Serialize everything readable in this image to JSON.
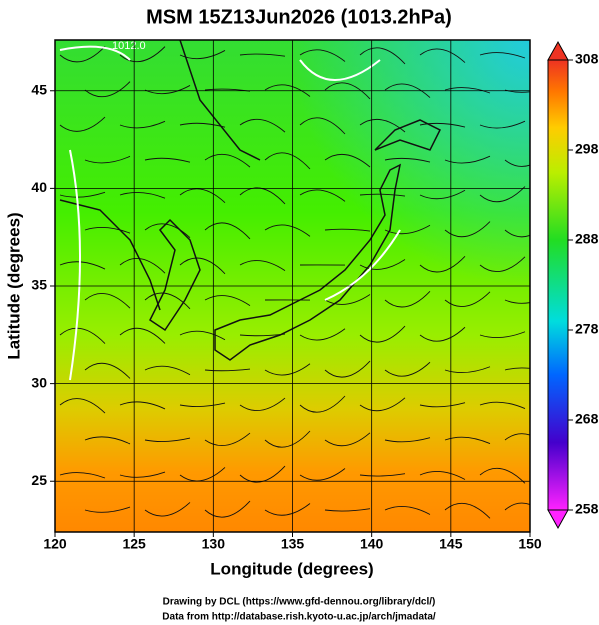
{
  "chart_data": {
    "type": "map",
    "title": "MSM 15Z13Jun2026 (1013.2hPa)",
    "xlabel": "Longitude (degrees)",
    "ylabel": "Latitude  (degrees)",
    "xlim": [
      120,
      150
    ],
    "xticks": [
      120,
      125,
      130,
      135,
      140,
      145,
      150
    ],
    "ylim": [
      22.4,
      47.6
    ],
    "yticks": [
      25,
      30,
      35,
      40,
      45
    ],
    "grid": true,
    "annotations": [
      "1012.0"
    ],
    "colorbar": {
      "lim": [
        258,
        308
      ],
      "ticks": [
        258,
        268,
        278,
        288,
        298,
        308
      ]
    },
    "credits": [
      "Drawing by DCL (https://www.gfd-dennou.org/library/dcl/)",
      "Data from http://database.rish.kyoto-u.ac.jp/arch/jmadata/"
    ]
  }
}
